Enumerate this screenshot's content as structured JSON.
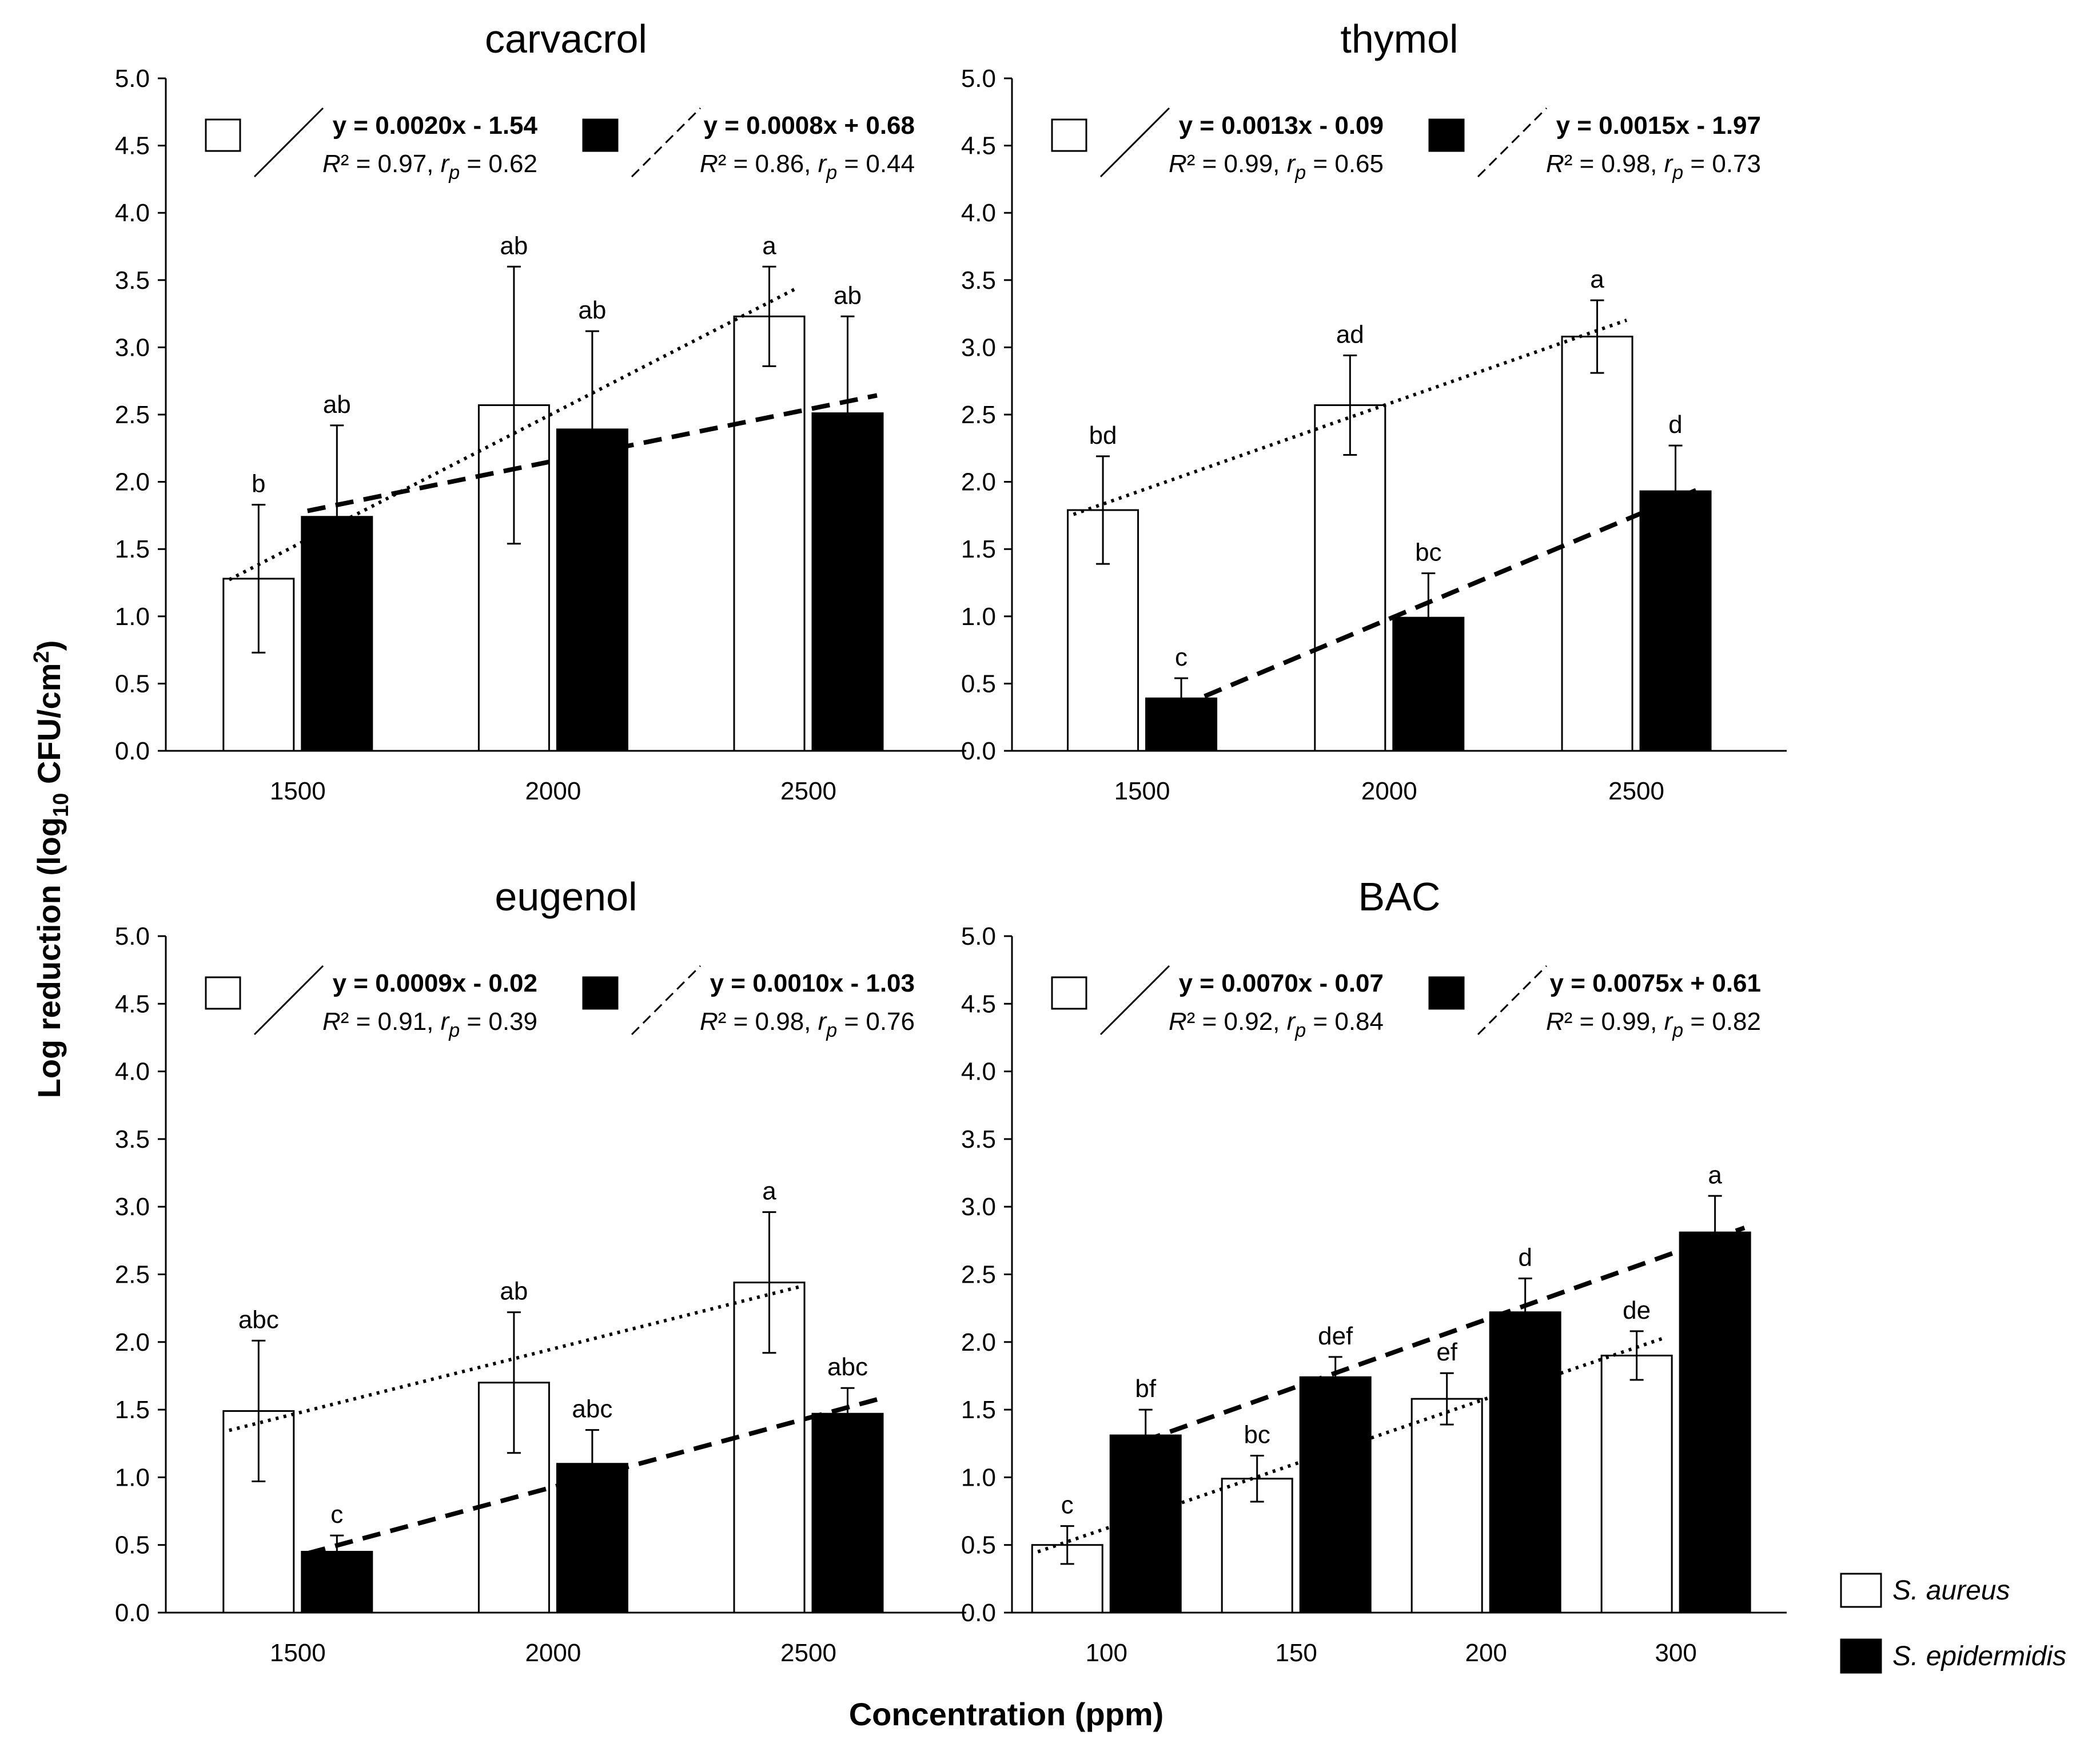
{
  "figure": {
    "ylabel": "Log reduction (log10 CFU/cm²)",
    "ylabel_parts": {
      "main": "Log reduction (log",
      "sub": "10",
      "unit": " CFU/cm",
      "sup": "2",
      "close": ")"
    },
    "xlabel": "Concentration (ppm)",
    "legend": [
      {
        "name": "S. aureus",
        "fill": "#ffffff"
      },
      {
        "name": "S. epidermidis",
        "fill": "#000000"
      }
    ],
    "colors": {
      "bar_aureus": "#ffffff",
      "bar_epidermidis": "#000000",
      "stroke": "#000000"
    }
  },
  "chart_data": [
    {
      "type": "bar",
      "title": "carvacrol",
      "categories": [
        "1500",
        "2000",
        "2500"
      ],
      "ylim": [
        0,
        5
      ],
      "yticks": [
        "0.0",
        "0.5",
        "1.0",
        "1.5",
        "2.0",
        "2.5",
        "3.0",
        "3.5",
        "4.0",
        "4.5",
        "5.0"
      ],
      "series": [
        {
          "name": "S. aureus",
          "values": [
            1.28,
            2.57,
            3.23
          ],
          "errors": [
            0.55,
            1.03,
            0.37
          ],
          "labels": [
            "b",
            "ab",
            "a"
          ],
          "trend": "dotted"
        },
        {
          "name": "S. epidermidis",
          "values": [
            1.74,
            2.39,
            2.51
          ],
          "errors": [
            0.68,
            0.73,
            0.72
          ],
          "labels": [
            "ab",
            "ab",
            "ab"
          ],
          "trend": "dashed"
        }
      ],
      "equations": [
        {
          "eq": "y = 0.0020x - 1.54",
          "r2": "0.97",
          "rp": "0.62"
        },
        {
          "eq": "y = 0.0008x + 0.68",
          "r2": "0.86",
          "rp": "0.44"
        }
      ]
    },
    {
      "type": "bar",
      "title": "thymol",
      "categories": [
        "1500",
        "2000",
        "2500"
      ],
      "ylim": [
        0,
        5
      ],
      "yticks": [
        "0.0",
        "0.5",
        "1.0",
        "1.5",
        "2.0",
        "2.5",
        "3.0",
        "3.5",
        "4.0",
        "4.5",
        "5.0"
      ],
      "series": [
        {
          "name": "S. aureus",
          "values": [
            1.79,
            2.57,
            3.08
          ],
          "errors": [
            0.4,
            0.37,
            0.27
          ],
          "labels": [
            "bd",
            "ad",
            "a"
          ],
          "trend": "dotted"
        },
        {
          "name": "S. epidermidis",
          "values": [
            0.39,
            0.99,
            1.93
          ],
          "errors": [
            0.15,
            0.33,
            0.34
          ],
          "labels": [
            "c",
            "bc",
            "d"
          ],
          "trend": "dashed"
        }
      ],
      "equations": [
        {
          "eq": "y = 0.0013x - 0.09",
          "r2": "0.99",
          "rp": "0.65"
        },
        {
          "eq": "y = 0.0015x - 1.97",
          "r2": "0.98",
          "rp": "0.73"
        }
      ]
    },
    {
      "type": "bar",
      "title": "eugenol",
      "categories": [
        "1500",
        "2000",
        "2500"
      ],
      "ylim": [
        0,
        5
      ],
      "yticks": [
        "0.0",
        "0.5",
        "1.0",
        "1.5",
        "2.0",
        "2.5",
        "3.0",
        "3.5",
        "4.0",
        "4.5",
        "5.0"
      ],
      "series": [
        {
          "name": "S. aureus",
          "values": [
            1.49,
            1.7,
            2.44
          ],
          "errors": [
            0.52,
            0.52,
            0.52
          ],
          "labels": [
            "abc",
            "ab",
            "a"
          ],
          "trend": "dotted"
        },
        {
          "name": "S. epidermidis",
          "values": [
            0.45,
            1.1,
            1.47
          ],
          "errors": [
            0.12,
            0.25,
            0.19
          ],
          "labels": [
            "c",
            "abc",
            "abc"
          ],
          "trend": "dashed"
        }
      ],
      "equations": [
        {
          "eq": "y = 0.0009x - 0.02",
          "r2": "0.91",
          "rp": "0.39"
        },
        {
          "eq": "y = 0.0010x - 1.03",
          "r2": "0.98",
          "rp": "0.76"
        }
      ]
    },
    {
      "type": "bar",
      "title": "BAC",
      "categories": [
        "100",
        "150",
        "200",
        "300"
      ],
      "ylim": [
        0,
        5
      ],
      "yticks": [
        "0.0",
        "0.5",
        "1.0",
        "1.5",
        "2.0",
        "2.5",
        "3.0",
        "3.5",
        "4.0",
        "4.5",
        "5.0"
      ],
      "series": [
        {
          "name": "S. aureus",
          "values": [
            0.5,
            0.99,
            1.58,
            1.9
          ],
          "errors": [
            0.14,
            0.17,
            0.19,
            0.18
          ],
          "labels": [
            "c",
            "bc",
            "ef",
            "de"
          ],
          "trend": "dotted"
        },
        {
          "name": "S. epidermidis",
          "values": [
            1.31,
            1.74,
            2.22,
            2.81
          ],
          "errors": [
            0.19,
            0.15,
            0.25,
            0.27
          ],
          "labels": [
            "bf",
            "def",
            "d",
            "a"
          ],
          "trend": "dashed"
        }
      ],
      "equations": [
        {
          "eq": "y = 0.0070x - 0.07",
          "r2": "0.92",
          "rp": "0.84"
        },
        {
          "eq": "y = 0.0075x + 0.61",
          "r2": "0.99",
          "rp": "0.82"
        }
      ]
    }
  ]
}
